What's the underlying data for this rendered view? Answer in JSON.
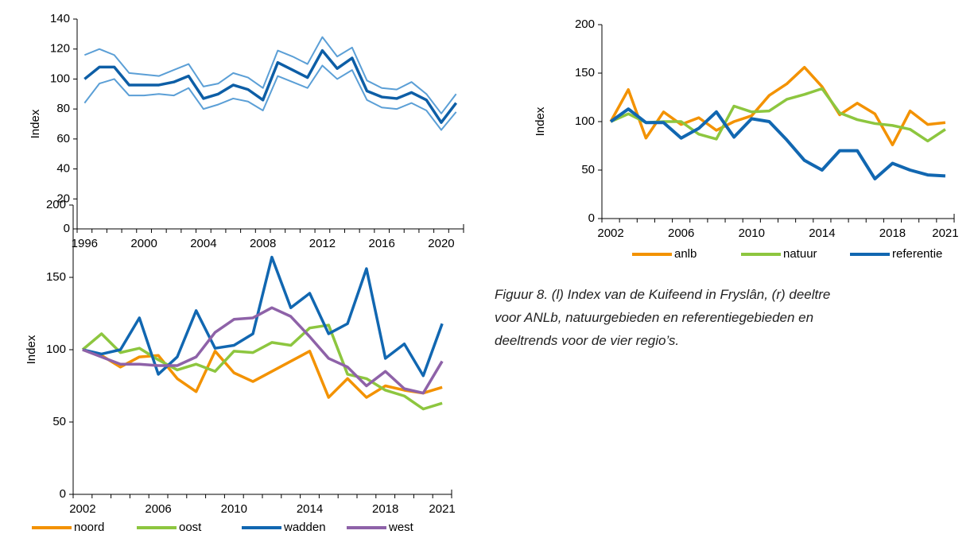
{
  "chart_data": [
    {
      "type": "line",
      "y_label": "Index",
      "categories": [
        "1996",
        null,
        null,
        null,
        "2000",
        null,
        null,
        null,
        "2004",
        null,
        null,
        null,
        "2008",
        null,
        null,
        null,
        "2012",
        null,
        null,
        null,
        "2016",
        null,
        null,
        null,
        "2020",
        null
      ],
      "ylim": [
        0,
        140
      ],
      "yticks": [
        0,
        20,
        40,
        60,
        80,
        100,
        120,
        140
      ],
      "series": [
        {
          "color": "#5b9fd6",
          "values": [
            116,
            120,
            116,
            104,
            103,
            102,
            106,
            110,
            95,
            97,
            104,
            101,
            94,
            119,
            115,
            110,
            128,
            115,
            121,
            99,
            94,
            93,
            98,
            90,
            77,
            90
          ]
        },
        {
          "color": "#5b9fd6",
          "values": [
            84,
            97,
            100,
            89,
            89,
            90,
            89,
            94,
            80,
            83,
            87,
            85,
            79,
            102,
            98,
            94,
            109,
            100,
            106,
            86,
            81,
            80,
            84,
            79,
            66,
            78
          ]
        },
        {
          "color": "#0d5ea6",
          "values": [
            100,
            108,
            108,
            96,
            96,
            96,
            98,
            102,
            87,
            90,
            96,
            93,
            86,
            111,
            106,
            101,
            119,
            107,
            114,
            92,
            88,
            87,
            91,
            86,
            71,
            84
          ]
        }
      ]
    },
    {
      "type": "line",
      "y_label": "Index",
      "categories": [
        "2002",
        null,
        null,
        null,
        "2006",
        null,
        null,
        null,
        "2010",
        null,
        null,
        null,
        "2014",
        null,
        null,
        null,
        "2018",
        null,
        null,
        "2021"
      ],
      "ylim": [
        0,
        200
      ],
      "yticks": [
        0,
        50,
        100,
        150,
        200
      ],
      "series": [
        {
          "name": "anlb",
          "color": "#f39200",
          "values": [
            100,
            133,
            83,
            110,
            97,
            104,
            91,
            100,
            106,
            127,
            139,
            156,
            136,
            107,
            119,
            108,
            76,
            111,
            97,
            99
          ]
        },
        {
          "name": "natuur",
          "color": "#8dc63f",
          "values": [
            100,
            108,
            99,
            100,
            100,
            87,
            82,
            116,
            110,
            111,
            123,
            128,
            134,
            109,
            102,
            98,
            96,
            92,
            80,
            92
          ]
        },
        {
          "name": "referentie",
          "color": "#1167b1",
          "values": [
            100,
            113,
            99,
            99,
            83,
            93,
            110,
            84,
            103,
            100,
            81,
            60,
            50,
            70,
            70,
            41,
            57,
            50,
            45,
            44
          ]
        }
      ]
    },
    {
      "type": "line",
      "y_label": "Index",
      "categories": [
        "2002",
        null,
        null,
        null,
        "2006",
        null,
        null,
        null,
        "2010",
        null,
        null,
        null,
        "2014",
        null,
        null,
        null,
        "2018",
        null,
        null,
        "2021"
      ],
      "ylim": [
        0,
        200
      ],
      "yticks": [
        0,
        50,
        100,
        150,
        200
      ],
      "series": [
        {
          "name": "noord",
          "color": "#f39200",
          "values": [
            100,
            96,
            88,
            95,
            96,
            80,
            71,
            99,
            84,
            78,
            85,
            92,
            99,
            67,
            80,
            67,
            75,
            72,
            70,
            74
          ]
        },
        {
          "name": "oost",
          "color": "#8dc63f",
          "values": [
            100,
            111,
            98,
            101,
            93,
            86,
            90,
            85,
            99,
            98,
            105,
            103,
            115,
            117,
            83,
            80,
            72,
            68,
            59,
            63
          ]
        },
        {
          "name": "wadden",
          "color": "#1167b1",
          "values": [
            100,
            97,
            100,
            122,
            83,
            95,
            127,
            101,
            103,
            111,
            164,
            129,
            139,
            111,
            118,
            156,
            94,
            104,
            82,
            118
          ]
        },
        {
          "name": "west",
          "color": "#8e62a8",
          "values": [
            100,
            95,
            90,
            90,
            89,
            89,
            95,
            112,
            121,
            122,
            129,
            123,
            109,
            94,
            88,
            75,
            85,
            73,
            70,
            92
          ]
        }
      ]
    }
  ],
  "caption": [
    "Figuur 8. (l) Index van de Kuifeend in Fryslân, (r) deeltre",
    "voor ANLb, natuurgebieden en referentiegebieden en",
    "deeltrends voor de vier regio’s."
  ]
}
